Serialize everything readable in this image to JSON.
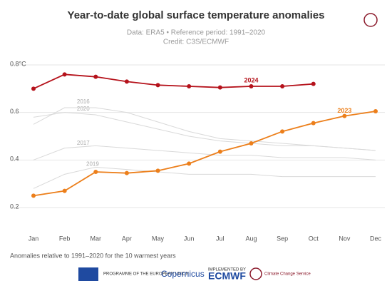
{
  "chart_data": {
    "type": "line",
    "title": "Year-to-date global surface temperature anomalies",
    "subtitle": "Data: ERA5 • Reference period: 1991–2020",
    "credit": "Credit: C3S/ECMWF",
    "categories": [
      "Jan",
      "Feb",
      "Mar",
      "Apr",
      "May",
      "Jun",
      "Jul",
      "Aug",
      "Sep",
      "Oct",
      "Nov",
      "Dec"
    ],
    "series": [
      {
        "name": "2024",
        "color": "#b5121b",
        "values": [
          0.7,
          0.76,
          0.75,
          0.73,
          0.715,
          0.71,
          0.705,
          0.71,
          0.71,
          0.72,
          null,
          null
        ]
      },
      {
        "name": "2023",
        "color": "#ec7f1b",
        "values": [
          0.25,
          0.27,
          0.35,
          0.345,
          0.355,
          0.385,
          0.435,
          0.47,
          0.52,
          0.555,
          0.585,
          0.605
        ]
      },
      {
        "name": "2016",
        "color": "#d9d9d9",
        "values": [
          0.55,
          0.62,
          0.62,
          0.6,
          0.56,
          0.52,
          0.49,
          0.48,
          0.47,
          0.46,
          0.45,
          0.44
        ]
      },
      {
        "name": "2020",
        "color": "#d9d9d9",
        "values": [
          0.58,
          0.6,
          0.59,
          0.56,
          0.53,
          0.5,
          0.48,
          0.47,
          0.46,
          0.46,
          0.45,
          0.44
        ]
      },
      {
        "name": "2017",
        "color": "#d9d9d9",
        "values": [
          0.4,
          0.45,
          0.46,
          0.45,
          0.44,
          0.43,
          0.42,
          0.42,
          0.41,
          0.41,
          0.41,
          0.4
        ]
      },
      {
        "name": "2019",
        "color": "#d9d9d9",
        "values": [
          0.28,
          0.34,
          0.37,
          0.36,
          0.35,
          0.34,
          0.34,
          0.34,
          0.33,
          0.33,
          0.33,
          0.33
        ]
      }
    ],
    "ylim": [
      0.14,
      0.86
    ],
    "yticks": [
      {
        "value": 0.8,
        "label": "0.8°C"
      },
      0.6,
      0.4,
      0.2
    ],
    "grid": true,
    "footnote": "Anomalies relative to 1991–2020 for the 10 warmest years",
    "logos": [
      "PROGRAMME OF THE EUROPEAN UNION",
      "Copernicus",
      "IMPLEMENTED BY",
      "ECMWF",
      "Climate Change Service"
    ]
  }
}
